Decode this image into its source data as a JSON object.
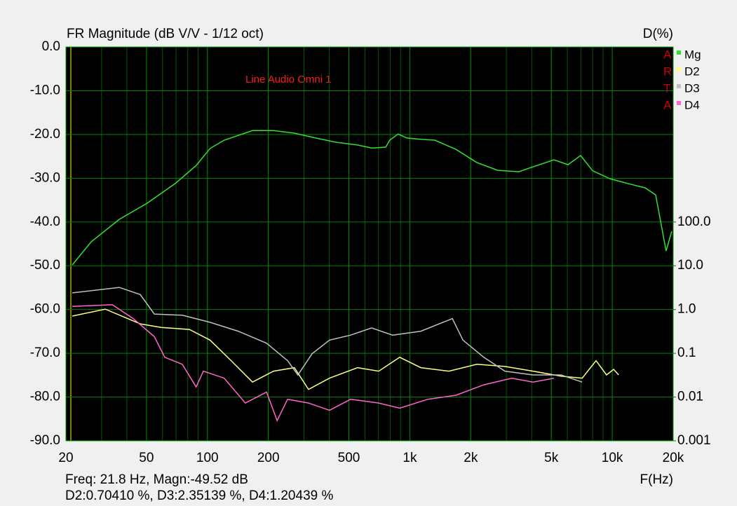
{
  "chart_data": {
    "type": "line",
    "title": "FR Magnitude (dB V/V - 1/12 oct)",
    "y2_label": "D(%)",
    "x_label": "F(Hz)",
    "annotation": "Line Audio Omni 1",
    "logo": [
      "A",
      "R",
      "T",
      "A"
    ],
    "readout": [
      "Freq: 21.8 Hz, Magn:-49.52 dB",
      "D2:0.70410 %, D3:2.35139 %, D4:1.20439 %"
    ],
    "xscale": "log",
    "y2scale": "log",
    "grid": true,
    "xlim": [
      20,
      20000
    ],
    "xticks": [
      20,
      50,
      100,
      200,
      500,
      {
        "value": 1000,
        "label": "1k"
      },
      {
        "value": 2000,
        "label": "2k"
      },
      {
        "value": 5000,
        "label": "5k"
      },
      {
        "value": 10000,
        "label": "10k"
      },
      {
        "value": 20000,
        "label": "20k"
      }
    ],
    "ylim": [
      -90,
      0
    ],
    "yticks": [
      {
        "value": 0,
        "label": "0.0"
      },
      {
        "value": -10,
        "label": "-10.0"
      },
      {
        "value": -20,
        "label": "-20.0"
      },
      {
        "value": -30,
        "label": "-30.0"
      },
      {
        "value": -40,
        "label": "-40.0"
      },
      {
        "value": -50,
        "label": "-50.0"
      },
      {
        "value": -60,
        "label": "-60.0"
      },
      {
        "value": -70,
        "label": "-70.0"
      },
      {
        "value": -80,
        "label": "-80.0"
      },
      {
        "value": -90,
        "label": "-90.0"
      }
    ],
    "y2lim": [
      0.001,
      1000000
    ],
    "y2ticks": [
      {
        "value": 100,
        "label": "100.0"
      },
      {
        "value": 10,
        "label": "10.0"
      },
      {
        "value": 1,
        "label": "1.0"
      },
      0.1,
      0.01,
      0.001
    ],
    "series": [
      {
        "name": "Mg",
        "color": "#33e033",
        "x": [
          21.5,
          26.7,
          36.7,
          50.4,
          69.4,
          88,
          103,
          121,
          167,
          212,
          269,
          342,
          435,
          552,
          647,
          760,
          796,
          876,
          966,
          1133,
          1328,
          1688,
          2143,
          2723,
          3460,
          4060,
          5155,
          6040,
          6980,
          8000,
          9750,
          11920,
          14550,
          16380,
          18450,
          19680
        ],
        "values": [
          -49.8,
          -44.5,
          -39.4,
          -35.7,
          -31.2,
          -27.1,
          -23.2,
          -21.3,
          -19.1,
          -19.1,
          -19.7,
          -20.8,
          -21.8,
          -22.4,
          -23.1,
          -22.9,
          -21.3,
          -19.9,
          -20.8,
          -21.1,
          -21.3,
          -23.4,
          -26.4,
          -28.2,
          -28.5,
          -27.4,
          -25.8,
          -26.9,
          -24.8,
          -28.3,
          -30.1,
          -31.2,
          -32.2,
          -33.8,
          -46.6,
          -42.1
        ]
      },
      {
        "name": "D2",
        "color": "#ffff80",
        "axis": "y2",
        "x": [
          21.5,
          31.3,
          46.6,
          59.2,
          81.5,
          103,
          131,
          167,
          212,
          269,
          316,
          401,
          552,
          702,
          891,
          1133,
          1560,
          2143,
          2950,
          4060,
          5590,
          7100,
          8320,
          9370,
          10160,
          10750
        ],
        "values": [
          0.71,
          1.02,
          0.47,
          0.39,
          0.35,
          0.2,
          0.068,
          0.022,
          0.039,
          0.047,
          0.015,
          0.027,
          0.047,
          0.039,
          0.081,
          0.047,
          0.039,
          0.056,
          0.05,
          0.039,
          0.03,
          0.027,
          0.068,
          0.032,
          0.043,
          0.032
        ]
      },
      {
        "name": "D3",
        "color": "#c0c0c0",
        "axis": "y2",
        "x": [
          21.5,
          36.7,
          46.6,
          54.7,
          75.2,
          103,
          142,
          196,
          249,
          280,
          329,
          401,
          510,
          647,
          822,
          1133,
          1623,
          1830,
          2320,
          2950,
          4060,
          5590,
          7100
        ],
        "values": [
          2.4,
          3.2,
          2.2,
          0.79,
          0.74,
          0.51,
          0.32,
          0.17,
          0.068,
          0.032,
          0.098,
          0.2,
          0.26,
          0.38,
          0.26,
          0.32,
          0.62,
          0.2,
          0.081,
          0.039,
          0.032,
          0.032,
          0.022
        ]
      },
      {
        "name": "D4",
        "color": "#ff66cc",
        "axis": "y2",
        "x": [
          21.5,
          33.9,
          43,
          54.7,
          61.6,
          75.2,
          88,
          95.5,
          121,
          154,
          196,
          221,
          249,
          316,
          401,
          510,
          702,
          891,
          1228,
          1688,
          2320,
          3190,
          4060,
          5155
        ],
        "values": [
          1.18,
          1.29,
          0.62,
          0.24,
          0.081,
          0.056,
          0.017,
          0.039,
          0.027,
          0.0073,
          0.013,
          0.0029,
          0.0089,
          0.0073,
          0.005,
          0.0089,
          0.0073,
          0.0056,
          0.0089,
          0.011,
          0.019,
          0.027,
          0.022,
          0.027
        ]
      }
    ]
  }
}
